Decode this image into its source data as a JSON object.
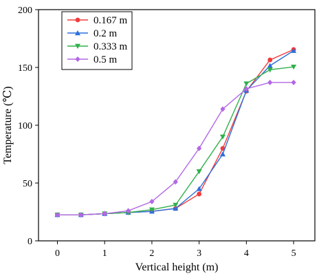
{
  "chart_data": {
    "type": "line",
    "xlabel": "Vertical height (m)",
    "ylabel": "Temperature (℃)",
    "x": [
      0,
      0.5,
      1,
      1.5,
      2,
      2.5,
      3,
      3.5,
      4,
      4.5,
      5
    ],
    "xlim": [
      -0.4,
      5.45
    ],
    "ylim": [
      0,
      200
    ],
    "xticks": [
      0,
      1,
      2,
      3,
      4,
      5
    ],
    "yticks": [
      0,
      50,
      100,
      150,
      200
    ],
    "grid": false,
    "legend_position": "top-left",
    "series": [
      {
        "name": "0.167 m",
        "color": "#f03c3c",
        "marker": "circle",
        "values": [
          22.5,
          22.5,
          23.5,
          24.5,
          25.5,
          28,
          40.5,
          80,
          129.5,
          156.5,
          165.5
        ]
      },
      {
        "name": "0.2 m",
        "color": "#2c6fdc",
        "marker": "triangle-up",
        "values": [
          22.5,
          22.5,
          23.5,
          24.5,
          25.5,
          28,
          45,
          75,
          130,
          151.5,
          164.5
        ]
      },
      {
        "name": "0.333 m",
        "color": "#2fb04a",
        "marker": "triangle-down",
        "values": [
          22.5,
          22.5,
          23.5,
          24.5,
          27,
          31,
          60,
          90,
          136,
          148,
          150.5
        ]
      },
      {
        "name": "0.5 m",
        "color": "#b367e6",
        "marker": "diamond",
        "values": [
          22.5,
          22.5,
          23.5,
          26,
          34,
          51,
          80,
          114,
          131.5,
          137,
          137
        ]
      }
    ]
  }
}
